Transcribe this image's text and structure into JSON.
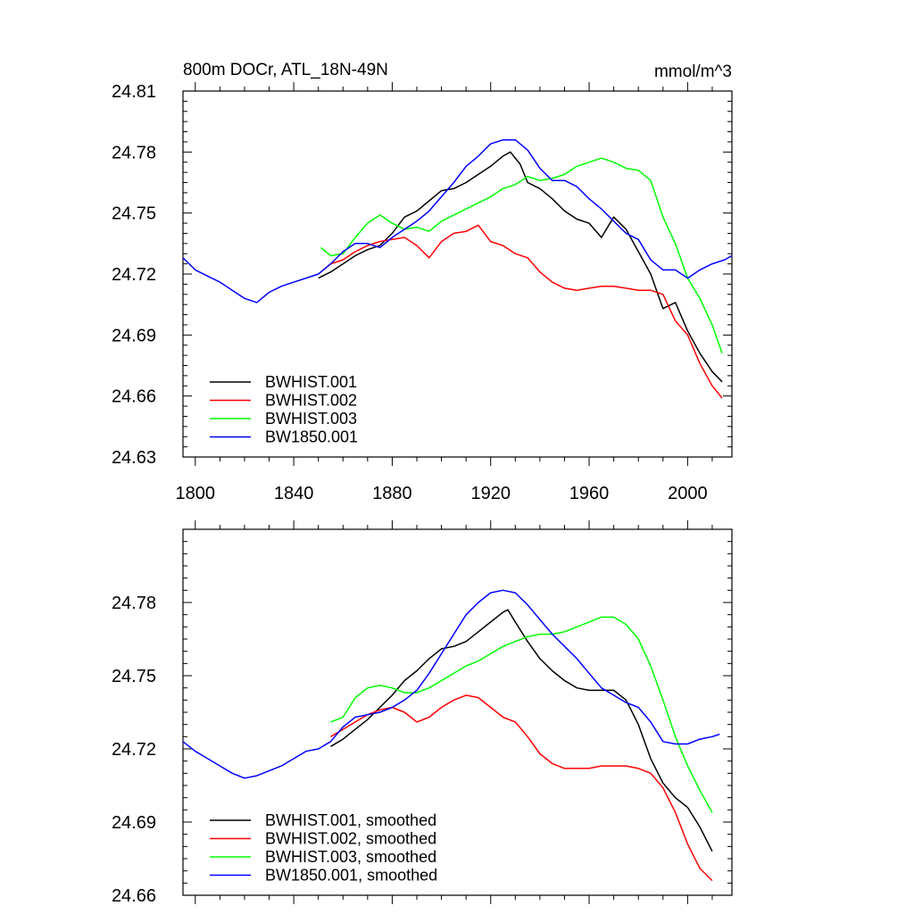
{
  "chart_data": [
    {
      "type": "line",
      "title": "800m DOCr, ATL_18N-49N",
      "units": "mmol/m^3",
      "xlabel": "",
      "ylabel": "",
      "xlim": [
        1795,
        2018
      ],
      "ylim": [
        24.63,
        24.81
      ],
      "x_ticks": [
        1800,
        1840,
        1880,
        1920,
        1960,
        2000
      ],
      "x_tick_labels": [
        "1800",
        "1840",
        "1880",
        "1920",
        "1960",
        "2000"
      ],
      "y_ticks": [
        24.63,
        24.66,
        24.69,
        24.72,
        24.75,
        24.78,
        24.81
      ],
      "y_tick_labels": [
        "24.63",
        "24.66",
        "24.69",
        "24.72",
        "24.75",
        "24.78",
        "24.81"
      ],
      "legend_position": "bottom-left",
      "grid": false,
      "series": [
        {
          "name": "BWHIST.001",
          "color": "#000000",
          "x": [
            1850,
            1855,
            1860,
            1865,
            1870,
            1875,
            1880,
            1885,
            1890,
            1895,
            1900,
            1905,
            1910,
            1915,
            1920,
            1925,
            1928,
            1932,
            1935,
            1940,
            1945,
            1950,
            1955,
            1960,
            1965,
            1970,
            1975,
            1980,
            1985,
            1990,
            1995,
            2000,
            2005,
            2010,
            2014
          ],
          "y": [
            24.718,
            24.721,
            24.725,
            24.729,
            24.732,
            24.734,
            24.74,
            24.748,
            24.751,
            24.756,
            24.761,
            24.762,
            24.765,
            24.769,
            24.773,
            24.778,
            24.78,
            24.774,
            24.765,
            24.762,
            24.757,
            24.751,
            24.747,
            24.745,
            24.738,
            24.748,
            24.742,
            24.731,
            24.72,
            24.703,
            24.706,
            24.692,
            24.681,
            24.672,
            24.667
          ]
        },
        {
          "name": "BWHIST.002",
          "color": "#ff0000",
          "x": [
            1851,
            1855,
            1860,
            1865,
            1870,
            1875,
            1880,
            1885,
            1890,
            1895,
            1900,
            1905,
            1910,
            1915,
            1920,
            1925,
            1930,
            1935,
            1940,
            1945,
            1950,
            1955,
            1960,
            1965,
            1970,
            1975,
            1980,
            1985,
            1990,
            1995,
            2000,
            2005,
            2010,
            2014
          ],
          "y": [
            24.721,
            24.725,
            24.727,
            24.731,
            24.734,
            24.736,
            24.737,
            24.738,
            24.734,
            24.728,
            24.736,
            24.74,
            24.741,
            24.744,
            24.736,
            24.734,
            24.73,
            24.728,
            24.721,
            24.716,
            24.713,
            24.712,
            24.713,
            24.714,
            24.714,
            24.713,
            24.712,
            24.712,
            24.71,
            24.697,
            24.69,
            24.676,
            24.665,
            24.659
          ]
        },
        {
          "name": "BWHIST.003",
          "color": "#00ff00",
          "x": [
            1851,
            1855,
            1860,
            1865,
            1870,
            1875,
            1880,
            1885,
            1890,
            1895,
            1900,
            1905,
            1910,
            1915,
            1920,
            1925,
            1930,
            1935,
            1940,
            1945,
            1950,
            1955,
            1960,
            1965,
            1970,
            1975,
            1980,
            1985,
            1990,
            1995,
            2000,
            2005,
            2010,
            2014
          ],
          "y": [
            24.733,
            24.729,
            24.73,
            24.738,
            24.745,
            24.749,
            24.745,
            24.742,
            24.743,
            24.741,
            24.746,
            24.749,
            24.752,
            24.755,
            24.758,
            24.762,
            24.764,
            24.768,
            24.766,
            24.767,
            24.769,
            24.773,
            24.775,
            24.777,
            24.775,
            24.772,
            24.771,
            24.766,
            24.748,
            24.735,
            24.718,
            24.708,
            24.695,
            24.681
          ]
        },
        {
          "name": "BW1850.001",
          "color": "#0000ff",
          "x": [
            1795,
            1800,
            1805,
            1810,
            1815,
            1820,
            1825,
            1830,
            1835,
            1840,
            1845,
            1850,
            1855,
            1860,
            1865,
            1870,
            1875,
            1880,
            1885,
            1890,
            1895,
            1900,
            1905,
            1910,
            1915,
            1920,
            1925,
            1930,
            1935,
            1940,
            1945,
            1950,
            1955,
            1960,
            1965,
            1970,
            1975,
            1980,
            1985,
            1990,
            1995,
            2000,
            2005,
            2010,
            2015,
            2018
          ],
          "y": [
            24.728,
            24.722,
            24.719,
            24.716,
            24.712,
            24.708,
            24.706,
            24.711,
            24.714,
            24.716,
            24.718,
            24.72,
            24.725,
            24.731,
            24.735,
            24.735,
            24.733,
            24.738,
            24.742,
            24.746,
            24.751,
            24.758,
            24.765,
            24.773,
            24.778,
            24.784,
            24.786,
            24.786,
            24.781,
            24.772,
            24.766,
            24.766,
            24.763,
            24.757,
            24.752,
            24.746,
            24.74,
            24.737,
            24.727,
            24.722,
            24.722,
            24.718,
            24.722,
            24.725,
            24.727,
            24.729
          ]
        }
      ]
    },
    {
      "type": "line",
      "title": "",
      "xlabel": "",
      "ylabel": "",
      "xlim": [
        1795,
        2018
      ],
      "ylim": [
        24.66,
        24.81
      ],
      "x_ticks": [
        1800,
        1840,
        1880,
        1920,
        1960,
        2000
      ],
      "y_ticks": [
        24.66,
        24.69,
        24.72,
        24.75,
        24.78
      ],
      "y_tick_labels": [
        "24.66",
        "24.69",
        "24.72",
        "24.75",
        "24.78"
      ],
      "legend_position": "bottom-left",
      "grid": false,
      "series": [
        {
          "name": "BWHIST.001, smoothed",
          "color": "#000000",
          "x": [
            1855,
            1860,
            1865,
            1870,
            1875,
            1880,
            1885,
            1890,
            1895,
            1900,
            1905,
            1910,
            1915,
            1920,
            1925,
            1927,
            1930,
            1935,
            1940,
            1945,
            1950,
            1955,
            1960,
            1965,
            1970,
            1975,
            1980,
            1985,
            1990,
            1995,
            2000,
            2005,
            2010
          ],
          "y": [
            24.721,
            24.724,
            24.728,
            24.732,
            24.737,
            24.742,
            24.748,
            24.752,
            24.757,
            24.761,
            24.762,
            24.764,
            24.768,
            24.772,
            24.776,
            24.777,
            24.772,
            24.764,
            24.757,
            24.752,
            24.748,
            24.745,
            24.744,
            24.744,
            24.744,
            24.74,
            24.73,
            24.716,
            24.706,
            24.7,
            24.696,
            24.688,
            24.678
          ]
        },
        {
          "name": "BWHIST.002, smoothed",
          "color": "#ff0000",
          "x": [
            1855,
            1860,
            1865,
            1870,
            1875,
            1880,
            1885,
            1890,
            1895,
            1900,
            1905,
            1910,
            1915,
            1920,
            1925,
            1930,
            1935,
            1940,
            1945,
            1950,
            1955,
            1960,
            1965,
            1970,
            1975,
            1980,
            1985,
            1990,
            1995,
            2000,
            2005,
            2010
          ],
          "y": [
            24.725,
            24.728,
            24.731,
            24.734,
            24.736,
            24.737,
            24.735,
            24.731,
            24.733,
            24.737,
            24.74,
            24.742,
            24.741,
            24.737,
            24.733,
            24.731,
            24.725,
            24.718,
            24.714,
            24.712,
            24.712,
            24.712,
            24.713,
            24.713,
            24.713,
            24.712,
            24.71,
            24.704,
            24.694,
            24.681,
            24.671,
            24.666
          ]
        },
        {
          "name": "BWHIST.003, smoothed",
          "color": "#00ff00",
          "x": [
            1855,
            1860,
            1865,
            1870,
            1875,
            1880,
            1885,
            1890,
            1895,
            1900,
            1905,
            1910,
            1915,
            1920,
            1925,
            1930,
            1935,
            1940,
            1945,
            1950,
            1955,
            1960,
            1965,
            1970,
            1975,
            1980,
            1985,
            1990,
            1995,
            2000,
            2005,
            2010
          ],
          "y": [
            24.731,
            24.733,
            24.741,
            24.745,
            24.746,
            24.745,
            24.743,
            24.743,
            24.745,
            24.748,
            24.751,
            24.754,
            24.756,
            24.759,
            24.762,
            24.764,
            24.766,
            24.767,
            24.767,
            24.768,
            24.77,
            24.772,
            24.774,
            24.774,
            24.771,
            24.765,
            24.754,
            24.74,
            24.725,
            24.713,
            24.703,
            24.694
          ]
        },
        {
          "name": "BW1850.001, smoothed",
          "color": "#0000ff",
          "x": [
            1795,
            1800,
            1805,
            1810,
            1815,
            1820,
            1825,
            1830,
            1835,
            1840,
            1845,
            1850,
            1855,
            1860,
            1865,
            1870,
            1875,
            1880,
            1885,
            1890,
            1895,
            1900,
            1905,
            1910,
            1915,
            1920,
            1925,
            1930,
            1935,
            1940,
            1945,
            1950,
            1955,
            1960,
            1965,
            1970,
            1975,
            1980,
            1985,
            1990,
            1995,
            2000,
            2005,
            2010,
            2013
          ],
          "y": [
            24.723,
            24.719,
            24.716,
            24.713,
            24.71,
            24.708,
            24.709,
            24.711,
            24.713,
            24.716,
            24.719,
            24.72,
            24.723,
            24.729,
            24.733,
            24.734,
            24.735,
            24.737,
            24.74,
            24.744,
            24.751,
            24.759,
            24.767,
            24.775,
            24.78,
            24.784,
            24.785,
            24.784,
            24.779,
            24.773,
            24.767,
            24.762,
            24.757,
            24.751,
            24.745,
            24.742,
            24.739,
            24.737,
            24.731,
            24.723,
            24.722,
            24.722,
            24.724,
            24.725,
            24.726
          ]
        }
      ]
    }
  ]
}
